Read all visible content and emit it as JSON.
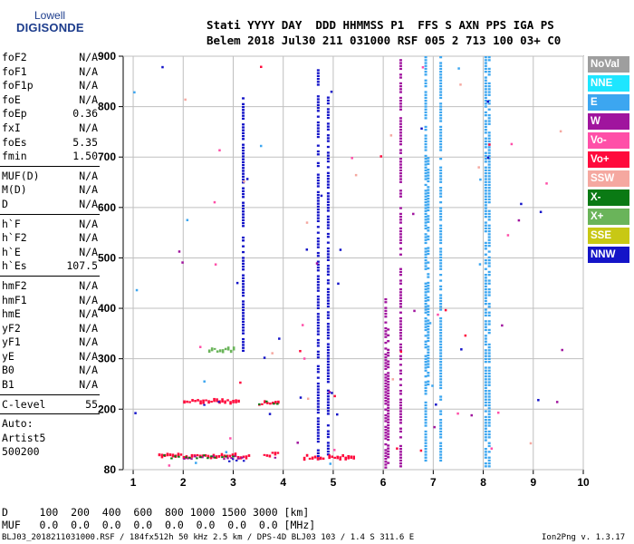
{
  "logo": {
    "line1": "Lowell",
    "line2": "DIGISONDE"
  },
  "header": {
    "line1": "Stati YYYY DAY  DDD HHMMSS P1  FFS S AXN PPS IGA PS",
    "line2": "Belem 2018 Jul30 211 031000 RSF 005 2 713 100 03+ C0"
  },
  "params": {
    "group1": [
      {
        "k": "foF2",
        "v": "N/A"
      },
      {
        "k": "foF1",
        "v": "N/A"
      },
      {
        "k": "foF1p",
        "v": "N/A"
      },
      {
        "k": "foE",
        "v": "N/A"
      },
      {
        "k": "foEp",
        "v": "0.36"
      },
      {
        "k": "fxI",
        "v": "N/A"
      },
      {
        "k": "foEs",
        "v": "5.35"
      },
      {
        "k": "fmin",
        "v": "1.50"
      }
    ],
    "group2": [
      {
        "k": "MUF(D)",
        "v": "N/A"
      },
      {
        "k": "M(D)",
        "v": "N/A"
      },
      {
        "k": "D",
        "v": "N/A"
      }
    ],
    "group3": [
      {
        "k": "h`F",
        "v": "N/A"
      },
      {
        "k": "h`F2",
        "v": "N/A"
      },
      {
        "k": "h`E",
        "v": "N/A"
      },
      {
        "k": "h`Es",
        "v": "107.5"
      }
    ],
    "group4": [
      {
        "k": "hmF2",
        "v": "N/A"
      },
      {
        "k": "hmF1",
        "v": "N/A"
      },
      {
        "k": "hmE",
        "v": "N/A"
      },
      {
        "k": "yF2",
        "v": "N/A"
      },
      {
        "k": "yF1",
        "v": "N/A"
      },
      {
        "k": "yE",
        "v": "N/A"
      },
      {
        "k": "B0",
        "v": "N/A"
      },
      {
        "k": "B1",
        "v": "N/A"
      }
    ],
    "clevel": {
      "k": "C-level",
      "v": "55"
    },
    "auto": [
      "Auto:",
      "Artist5",
      "500200"
    ]
  },
  "legend": [
    {
      "label": "NoVal",
      "color": "#9e9e9e"
    },
    {
      "label": "NNE",
      "color": "#1ee6ff"
    },
    {
      "label": "E",
      "color": "#3ca6f0"
    },
    {
      "label": "W",
      "color": "#a0149e"
    },
    {
      "label": "Vo-",
      "color": "#ff4fa8"
    },
    {
      "label": "Vo+",
      "color": "#ff0a3c"
    },
    {
      "label": "SSW",
      "color": "#f5a8a0"
    },
    {
      "label": "X-",
      "color": "#0a7a14"
    },
    {
      "label": "X+",
      "color": "#6ab45a"
    },
    {
      "label": "SSE",
      "color": "#c8c814"
    },
    {
      "label": "NNW",
      "color": "#1414c8"
    }
  ],
  "bottom": {
    "d_line": "D     100  200  400  600  800 1000 1500 3000 [km]",
    "muf_line": "MUF   0.0  0.0  0.0  0.0  0.0  0.0  0.0  0.0 [MHz]"
  },
  "footer": {
    "left": "BLJ03_2018211031000.RSF / 184fx512h 50 kHz 2.5 km / DPS-4D BLJ03 103 / 1.4 S 311.6 E",
    "right": "Ion2Png v. 1.3.17"
  },
  "chart_data": {
    "type": "scatter",
    "xlim": [
      0.8,
      10
    ],
    "ylim": [
      80,
      900
    ],
    "xticks": [
      1,
      2,
      3,
      4,
      5,
      6,
      7,
      8,
      9,
      10
    ],
    "yticks": [
      80,
      200,
      300,
      400,
      500,
      600,
      700,
      800,
      900
    ],
    "grid": true,
    "legend_position": "right",
    "series": [
      {
        "legend": "E",
        "color": "#3ca6f0",
        "columns": [
          {
            "x": 6.85,
            "y": [
              100,
              900
            ]
          },
          {
            "x": 6.9,
            "y": [
              250,
              700
            ]
          },
          {
            "x": 7.15,
            "y": [
              100,
              900
            ]
          },
          {
            "x": 8.05,
            "y": [
              85,
              900
            ]
          },
          {
            "x": 8.12,
            "y": [
              85,
              900
            ]
          }
        ]
      },
      {
        "legend": "W",
        "color": "#a0149e",
        "columns": [
          {
            "x": 6.05,
            "y": [
              85,
              420
            ]
          },
          {
            "x": 6.1,
            "y": [
              85,
              360
            ]
          },
          {
            "x": 6.35,
            "y": [
              85,
              900
            ]
          }
        ]
      },
      {
        "legend": "NNW",
        "color": "#1414c8",
        "columns": [
          {
            "x": 4.7,
            "y": [
              100,
              880
            ]
          },
          {
            "x": 4.9,
            "y": [
              110,
              820
            ]
          },
          {
            "x": 3.2,
            "y": [
              300,
              830
            ]
          }
        ]
      },
      {
        "legend": "Vo+",
        "color": "#ff0a3c",
        "bands": [
          {
            "x": [
              1.5,
              3.3
            ],
            "y": 107
          },
          {
            "x": 2.0,
            "x2": 3.1,
            "y": 215
          },
          {
            "x": [
              3.5,
              3.9
            ],
            "y": 212
          },
          {
            "x": [
              3.6,
              3.9
            ],
            "y": 110
          },
          {
            "x": [
              4.4,
              4.8
            ],
            "y": 105
          },
          {
            "x": [
              4.9,
              5.4
            ],
            "y": 105
          }
        ]
      },
      {
        "legend": "X+",
        "color": "#6ab45a",
        "bands": [
          {
            "x": [
              2.5,
              3.0
            ],
            "y": 317
          }
        ]
      }
    ]
  }
}
